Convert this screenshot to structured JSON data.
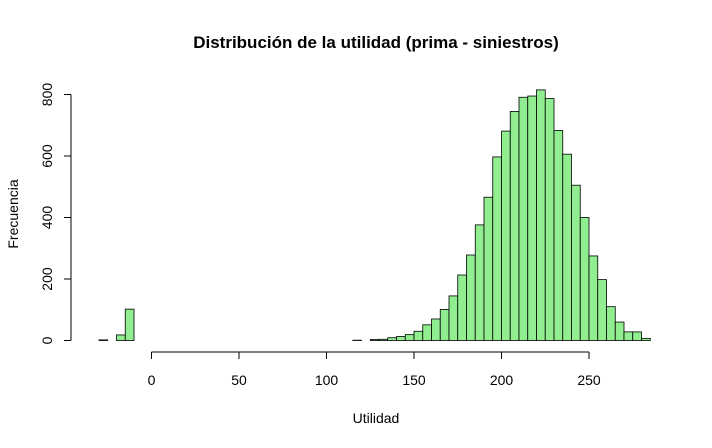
{
  "chart_data": {
    "type": "bar",
    "subtype": "histogram",
    "title": "Distribución de la utilidad (prima - siniestros)",
    "xlabel": "Utilidad",
    "ylabel": "Frecuencia",
    "bar_color": "#90EE90",
    "border_color": "#000000",
    "bin_width": 5,
    "xlim": [
      -30,
      285
    ],
    "ylim": [
      0,
      800
    ],
    "x_ticks": [
      0,
      50,
      100,
      150,
      200,
      250
    ],
    "y_ticks": [
      0,
      200,
      400,
      600,
      800
    ],
    "grid": false,
    "bins": [
      {
        "start": -30,
        "end": -25,
        "count": 2
      },
      {
        "start": -25,
        "end": -20,
        "count": 0
      },
      {
        "start": -20,
        "end": -15,
        "count": 18
      },
      {
        "start": -15,
        "end": -10,
        "count": 102
      },
      {
        "start": 115,
        "end": 120,
        "count": 1
      },
      {
        "start": 120,
        "end": 125,
        "count": 0
      },
      {
        "start": 125,
        "end": 130,
        "count": 3
      },
      {
        "start": 130,
        "end": 135,
        "count": 4
      },
      {
        "start": 135,
        "end": 140,
        "count": 9
      },
      {
        "start": 140,
        "end": 145,
        "count": 13
      },
      {
        "start": 145,
        "end": 150,
        "count": 19
      },
      {
        "start": 150,
        "end": 155,
        "count": 30
      },
      {
        "start": 155,
        "end": 160,
        "count": 51
      },
      {
        "start": 160,
        "end": 165,
        "count": 70
      },
      {
        "start": 165,
        "end": 170,
        "count": 101
      },
      {
        "start": 170,
        "end": 175,
        "count": 145
      },
      {
        "start": 175,
        "end": 180,
        "count": 213
      },
      {
        "start": 180,
        "end": 185,
        "count": 278
      },
      {
        "start": 185,
        "end": 190,
        "count": 376
      },
      {
        "start": 190,
        "end": 195,
        "count": 466
      },
      {
        "start": 195,
        "end": 200,
        "count": 597
      },
      {
        "start": 200,
        "end": 205,
        "count": 681
      },
      {
        "start": 205,
        "end": 210,
        "count": 745
      },
      {
        "start": 210,
        "end": 215,
        "count": 791
      },
      {
        "start": 215,
        "end": 220,
        "count": 795
      },
      {
        "start": 220,
        "end": 225,
        "count": 815
      },
      {
        "start": 225,
        "end": 230,
        "count": 787
      },
      {
        "start": 230,
        "end": 235,
        "count": 683
      },
      {
        "start": 235,
        "end": 240,
        "count": 606
      },
      {
        "start": 240,
        "end": 245,
        "count": 505
      },
      {
        "start": 245,
        "end": 250,
        "count": 400
      },
      {
        "start": 250,
        "end": 255,
        "count": 275
      },
      {
        "start": 255,
        "end": 260,
        "count": 198
      },
      {
        "start": 260,
        "end": 265,
        "count": 110
      },
      {
        "start": 265,
        "end": 270,
        "count": 60
      },
      {
        "start": 270,
        "end": 275,
        "count": 28
      },
      {
        "start": 275,
        "end": 280,
        "count": 28
      },
      {
        "start": 280,
        "end": 285,
        "count": 7
      }
    ]
  }
}
